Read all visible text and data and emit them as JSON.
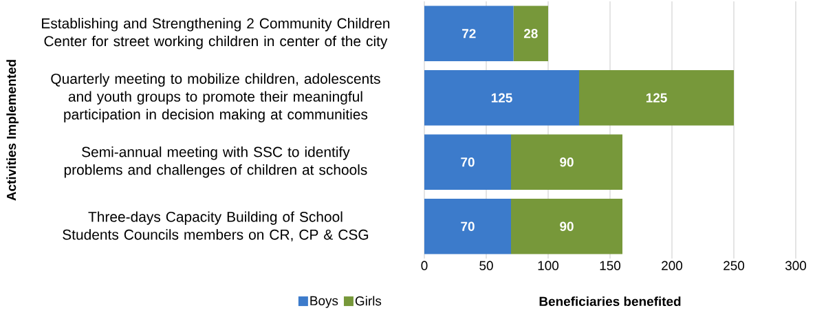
{
  "chart_data": {
    "type": "bar",
    "orientation": "horizontal",
    "stacked": true,
    "categories": [
      "Establishing and Strengthening 2 Community Children Center for street working children in center of the city",
      "Quarterly meeting to mobilize children, adolescents and youth groups to promote their meaningful participation in decision making at communities",
      "Semi-annual meeting with SSC to identify problems and challenges of children at schools",
      "Three-days Capacity Building of School Students Councils members on CR, CP & CSG"
    ],
    "series": [
      {
        "name": "Boys",
        "color": "#3c7bcb",
        "values": [
          72,
          125,
          70,
          70
        ]
      },
      {
        "name": "Girls",
        "color": "#77983a",
        "values": [
          28,
          125,
          90,
          90
        ]
      }
    ],
    "xlabel": "Beneficiaries benefited",
    "ylabel": "Activities Implemented",
    "xlim": [
      0,
      300
    ],
    "xticks": [
      0,
      50,
      100,
      150,
      200,
      250,
      300
    ],
    "grid": "x",
    "legend": "bottom",
    "data_labels": true
  }
}
